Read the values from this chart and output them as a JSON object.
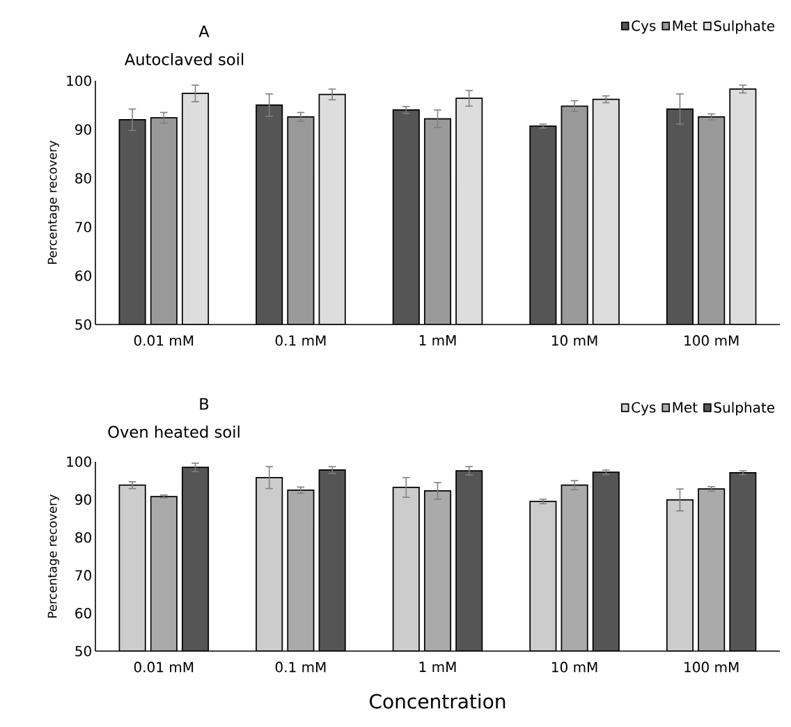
{
  "chart_data": [
    {
      "type": "bar",
      "title": "A",
      "subtitle": "Autoclaved soil",
      "ylabel": "Percentage recovery",
      "categories": [
        "0.01 mM",
        "0.1 mM",
        "1 mM",
        "10 mM",
        "100 mM"
      ],
      "ylim": [
        50,
        100
      ],
      "yticks": [
        50,
        60,
        70,
        80,
        90,
        100
      ],
      "legend": "top right",
      "series": [
        {
          "name": "Cys",
          "color": "#555555",
          "values": [
            92.0,
            95.0,
            94.0,
            90.7,
            94.2
          ],
          "errors": [
            2.2,
            2.3,
            0.7,
            0.4,
            3.1
          ]
        },
        {
          "name": "Met",
          "color": "#999999",
          "values": [
            92.4,
            92.6,
            92.2,
            94.8,
            92.6
          ],
          "errors": [
            1.1,
            0.9,
            1.8,
            1.1,
            0.6
          ]
        },
        {
          "name": "Sulphate",
          "color": "#dddddd",
          "values": [
            97.4,
            97.2,
            96.4,
            96.2,
            98.3
          ],
          "errors": [
            1.7,
            1.1,
            1.6,
            0.7,
            0.8
          ]
        }
      ]
    },
    {
      "type": "bar",
      "title": "B",
      "subtitle": "Oven heated soil",
      "ylabel": "Percentage recovery",
      "xlabel": "Concentration",
      "categories": [
        "0.01 mM",
        "0.1 mM",
        "1 mM",
        "10 mM",
        "100 mM"
      ],
      "ylim": [
        50,
        100
      ],
      "yticks": [
        50,
        60,
        70,
        80,
        90,
        100
      ],
      "legend": "top right",
      "series": [
        {
          "name": "Cys",
          "color": "#cccccc",
          "values": [
            93.8,
            95.8,
            93.2,
            89.5,
            89.9
          ],
          "errors": [
            0.9,
            2.9,
            2.6,
            0.6,
            2.9
          ]
        },
        {
          "name": "Met",
          "color": "#aaaaaa",
          "values": [
            90.8,
            92.5,
            92.3,
            93.8,
            92.8
          ],
          "errors": [
            0.4,
            0.8,
            2.2,
            1.2,
            0.6
          ]
        },
        {
          "name": "Sulphate",
          "color": "#555555",
          "values": [
            98.5,
            97.8,
            97.6,
            97.2,
            97.1
          ],
          "errors": [
            1.1,
            0.9,
            1.1,
            0.6,
            0.5
          ]
        }
      ]
    }
  ]
}
